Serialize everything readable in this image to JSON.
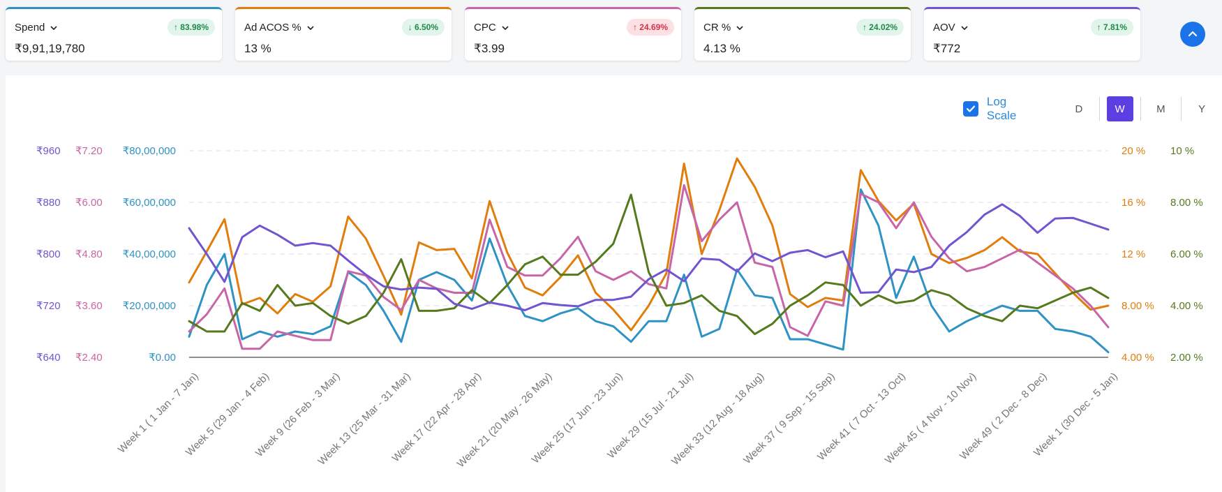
{
  "kpis": [
    {
      "name": "Spend",
      "value": "₹9,91,19,780",
      "change": "83.98%",
      "direction": "up",
      "status": "good",
      "color": "#2e93c4"
    },
    {
      "name": "Ad ACOS %",
      "value": "13 %",
      "change": "6.50%",
      "direction": "down",
      "status": "good",
      "color": "#e07d0c"
    },
    {
      "name": "CPC",
      "value": "₹3.99",
      "change": "24.69%",
      "direction": "up",
      "status": "bad",
      "color": "#c765a8"
    },
    {
      "name": "CR %",
      "value": "4.13 %",
      "change": "24.02%",
      "direction": "up",
      "status": "good",
      "color": "#557a1e"
    },
    {
      "name": "AOV",
      "value": "₹772",
      "change": "7.81%",
      "direction": "up",
      "status": "good",
      "color": "#7154d0"
    }
  ],
  "controls": {
    "log_scale_label": "Log Scale",
    "log_scale_checked": true,
    "periods": [
      "D",
      "W",
      "M",
      "Y"
    ],
    "active_period": "W"
  },
  "chart_data": {
    "type": "line",
    "x_tick_labels": [
      "Week 1 ( 1 Jan - 7 Jan)",
      "Week 5 (29 Jan - 4 Feb)",
      "Week 9 (26 Feb - 3 Mar)",
      "Week 13 (25 Mar - 31 Mar)",
      "Week 17 (22 Apr - 28 Apr)",
      "Week 21 (20 May - 26 May)",
      "Week 25 (17 Jun - 23 Jun)",
      "Week 29 (15 Jul - 21 Jul)",
      "Week 33 (12 Aug - 18 Aug)",
      "Week 37 ( 9 Sep - 15 Sep)",
      "Week 41 ( 7 Oct - 13 Oct)",
      "Week 45 ( 4 Nov - 10 Nov)",
      "Week 49 ( 2 Dec - 8 Dec)",
      "Week 1 (30 Dec - 5 Jan)"
    ],
    "gridlines": "dashed horizontal",
    "axes": [
      {
        "id": "aov",
        "position": "left",
        "ticks": [
          "₹640",
          "₹720",
          "₹800",
          "₹880",
          "₹960"
        ],
        "range": [
          640,
          960
        ],
        "color": "#7154d0"
      },
      {
        "id": "cpc",
        "position": "left",
        "ticks": [
          "₹2.40",
          "₹3.60",
          "₹4.80",
          "₹6.00",
          "₹7.20"
        ],
        "range": [
          2.4,
          7.2
        ],
        "color": "#c765a8"
      },
      {
        "id": "spend",
        "position": "left",
        "ticks": [
          "₹0.00",
          "₹20,00,000",
          "₹40,00,000",
          "₹60,00,000",
          "₹80,00,000"
        ],
        "range": [
          0,
          8000000
        ],
        "color": "#2e93c4"
      },
      {
        "id": "acos",
        "position": "right",
        "ticks": [
          "4.00 %",
          "8.00 %",
          "12 %",
          "16 %",
          "20 %"
        ],
        "range": [
          4,
          20
        ],
        "color": "#e07d0c"
      },
      {
        "id": "cr",
        "position": "right",
        "ticks": [
          "2.00 %",
          "4.00 %",
          "6.00 %",
          "8.00 %",
          "10 %"
        ],
        "range": [
          2,
          10
        ],
        "color": "#557a1e"
      }
    ],
    "series": [
      {
        "axis": "spend",
        "color": "#2e93c4",
        "values": [
          800000,
          2800000,
          4000000,
          700000,
          1000000,
          800000,
          1000000,
          900000,
          1200000,
          3300000,
          2800000,
          1800000,
          600000,
          3000000,
          3300000,
          3000000,
          2200000,
          4600000,
          2800000,
          1600000,
          1400000,
          1700000,
          1900000,
          1400000,
          1200000,
          600000,
          1400000,
          1400000,
          3200000,
          800000,
          1100000,
          3400000,
          2400000,
          2300000,
          700000,
          700000,
          500000,
          300000,
          6500000,
          5100000,
          2300000,
          3900000,
          2000000,
          1000000,
          1400000,
          1700000,
          2000000,
          1800000,
          1800000,
          1100000,
          1000000,
          800000,
          200000
        ]
      },
      {
        "axis": "acos",
        "color": "#e07d0c",
        "values": [
          9.8,
          12.2,
          14.7,
          8.1,
          8.6,
          7.4,
          8.9,
          8.3,
          9.5,
          14.9,
          13.2,
          10.3,
          7.3,
          12.9,
          12.3,
          12.4,
          10.1,
          16.1,
          12.1,
          9.4,
          8.8,
          10.2,
          11.9,
          9.0,
          7.7,
          6.1,
          8.0,
          10.5,
          19.0,
          12.0,
          15.4,
          19.4,
          17.2,
          14.2,
          8.9,
          7.9,
          8.6,
          8.4,
          18.5,
          16.1,
          14.6,
          15.9,
          12.0,
          11.3,
          11.7,
          12.3,
          13.3,
          12.2,
          12.0,
          10.5,
          9.0,
          7.7,
          8.0
        ]
      },
      {
        "axis": "cpc",
        "color": "#c765a8",
        "values": [
          3.0,
          3.4,
          4.0,
          2.6,
          2.6,
          3.0,
          2.9,
          2.8,
          2.8,
          4.4,
          4.3,
          3.8,
          3.5,
          4.2,
          4.0,
          3.9,
          3.9,
          5.6,
          4.5,
          4.3,
          4.3,
          4.7,
          5.2,
          4.4,
          4.2,
          4.4,
          4.1,
          4.0,
          6.4,
          5.1,
          5.6,
          6.0,
          4.6,
          4.5,
          3.1,
          2.9,
          3.7,
          3.6,
          6.2,
          6.0,
          5.4,
          6.0,
          5.2,
          4.7,
          4.4,
          4.5,
          4.7,
          4.9,
          4.6,
          4.3,
          4.0,
          3.6,
          3.1
        ]
      },
      {
        "axis": "cr",
        "color": "#557a1e",
        "values": [
          3.4,
          3.0,
          3.0,
          4.1,
          3.8,
          4.8,
          4.0,
          4.1,
          3.6,
          3.3,
          3.6,
          4.5,
          5.8,
          3.8,
          3.8,
          3.9,
          4.6,
          4.1,
          4.8,
          5.6,
          5.9,
          5.2,
          5.2,
          5.7,
          6.4,
          8.3,
          5.3,
          4.0,
          4.1,
          4.4,
          3.8,
          3.6,
          2.9,
          3.3,
          4.0,
          4.4,
          4.9,
          4.8,
          4.0,
          4.4,
          4.1,
          4.2,
          4.6,
          4.4,
          3.9,
          3.6,
          3.4,
          4.0,
          3.9,
          4.2,
          4.5,
          4.7,
          4.3
        ]
      },
      {
        "axis": "aov",
        "color": "#7154d0",
        "values": [
          840,
          800,
          757,
          826,
          844,
          830,
          813,
          817,
          813,
          790,
          768,
          750,
          745,
          748,
          746,
          723,
          715,
          725,
          720,
          713,
          724,
          721,
          719,
          729,
          729,
          734,
          761,
          776,
          758,
          793,
          791,
          773,
          801,
          789,
          802,
          806,
          795,
          804,
          740,
          741,
          776,
          772,
          780,
          813,
          834,
          861,
          877,
          859,
          833,
          855,
          856,
          847,
          838
        ]
      }
    ]
  }
}
